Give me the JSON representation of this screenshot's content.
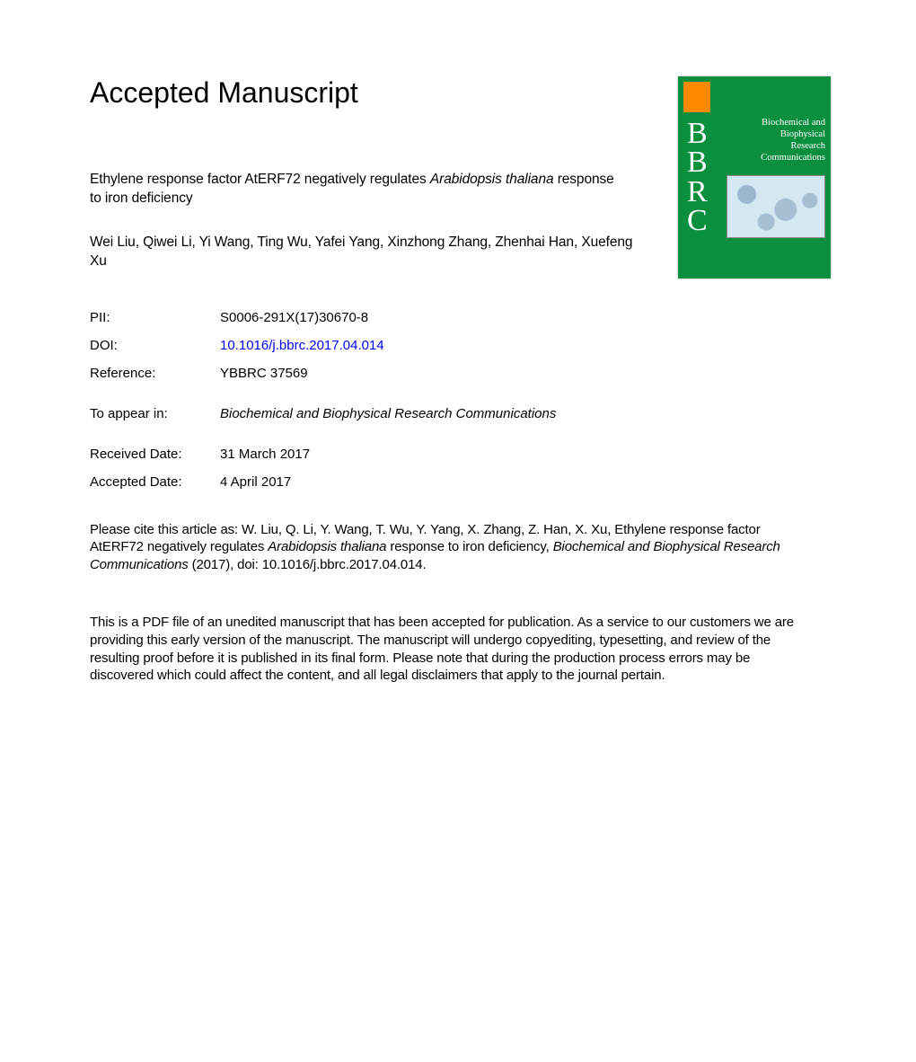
{
  "heading": "Accepted Manuscript",
  "title": {
    "before_italic": "Ethylene response factor AtERF72 negatively regulates ",
    "italic": "Arabidopsis thaliana",
    "after_italic": " response to iron deficiency"
  },
  "authors": "Wei Liu, Qiwei Li, Yi Wang, Ting Wu, Yafei Yang, Xinzhong Zhang, Zhenhai Han, Xuefeng Xu",
  "meta": {
    "pii_label": "PII:",
    "pii_value": "S0006-291X(17)30670-8",
    "doi_label": "DOI:",
    "doi_value": "10.1016/j.bbrc.2017.04.014",
    "reference_label": "Reference:",
    "reference_value": "YBBRC 37569",
    "to_appear_label": "To appear in:",
    "to_appear_value": "Biochemical and Biophysical Research Communications",
    "received_label": "Received Date:",
    "received_value": "31 March 2017",
    "accepted_label": "Accepted Date:",
    "accepted_value": "4 April 2017"
  },
  "citation": {
    "part1": "Please cite this article as: W. Liu, Q. Li, Y. Wang, T. Wu, Y. Yang, X. Zhang, Z. Han, X. Xu, Ethylene response factor AtERF72 negatively regulates ",
    "italic1": "Arabidopsis thaliana",
    "part2": " response to iron deficiency, ",
    "italic2": "Biochemical and Biophysical Research Communications",
    "part3": " (2017), doi: 10.1016/j.bbrc.2017.04.014."
  },
  "disclaimer": "This is a PDF file of an unedited manuscript that has been accepted for publication. As a service to our customers we are providing this early version of the manuscript. The manuscript will undergo copyediting, typesetting, and review of the resulting proof before it is published in its final form. Please note that during the production process errors may be discovered which could affect the content, and all legal disclaimers that apply to the journal pertain.",
  "cover": {
    "journal_lines": [
      "Biochemical and",
      "Biophysical",
      "Research",
      "Communications"
    ],
    "acronym": [
      "B",
      "B",
      "R",
      "C"
    ],
    "colors": {
      "background": "#0a8f3f",
      "elsevier_block": "#ff8a00",
      "text": "#ffffff",
      "art_bg": "#d4e8f2"
    }
  }
}
